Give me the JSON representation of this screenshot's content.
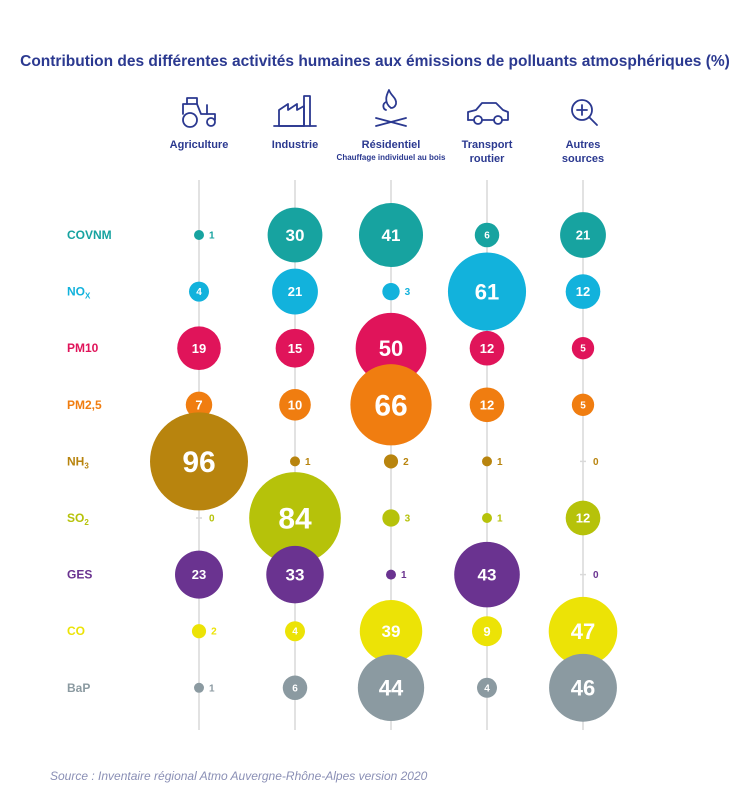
{
  "chart_data": {
    "type": "bubble-matrix",
    "title": "Contribution des différentes activités humaines aux émissions de polluants atmosphériques (%)",
    "columns": [
      {
        "key": "agriculture",
        "label": [
          "Agriculture"
        ],
        "icon": "tractor-icon"
      },
      {
        "key": "industrie",
        "label": [
          "Industrie"
        ],
        "icon": "factory-icon"
      },
      {
        "key": "residentiel",
        "label": [
          "Résidentiel"
        ],
        "sublabel": "Chauffage individuel au bois",
        "icon": "campfire-icon"
      },
      {
        "key": "transport",
        "label": [
          "Transport",
          "routier"
        ],
        "icon": "car-icon"
      },
      {
        "key": "autres",
        "label": [
          "Autres",
          "sources"
        ],
        "icon": "magnifier-plus-icon"
      }
    ],
    "rows": [
      {
        "name": "COVNM",
        "label_main": "COVNM",
        "label_sub": "",
        "color": "#17a3a0",
        "values": [
          1,
          30,
          41,
          6,
          21
        ]
      },
      {
        "name": "NOx",
        "label_main": "NO",
        "label_sub": "X",
        "color": "#12b2dc",
        "values": [
          4,
          21,
          3,
          61,
          12
        ]
      },
      {
        "name": "PM10",
        "label_main": "PM10",
        "label_sub": "",
        "color": "#e0145a",
        "values": [
          19,
          15,
          50,
          12,
          5
        ]
      },
      {
        "name": "PM2,5",
        "label_main": "PM2,5",
        "label_sub": "",
        "color": "#f07d10",
        "values": [
          7,
          10,
          66,
          12,
          5
        ]
      },
      {
        "name": "NH3",
        "label_main": "NH",
        "label_sub": "3",
        "color": "#b8840e",
        "values": [
          96,
          1,
          2,
          1,
          0
        ]
      },
      {
        "name": "SO2",
        "label_main": "SO",
        "label_sub": "2",
        "color": "#b6c20a",
        "values": [
          0,
          84,
          3,
          1,
          12
        ]
      },
      {
        "name": "GES",
        "label_main": "GES",
        "label_sub": "",
        "color": "#6a3390",
        "values": [
          23,
          33,
          1,
          43,
          0
        ]
      },
      {
        "name": "CO",
        "label_main": "CO",
        "label_sub": "",
        "color": "#ece306",
        "values": [
          2,
          4,
          39,
          9,
          47
        ]
      },
      {
        "name": "BaP",
        "label_main": "BaP",
        "label_sub": "",
        "color": "#8b9aa1",
        "values": [
          1,
          6,
          44,
          4,
          46
        ]
      }
    ],
    "source": "Source : Inventaire régional Atmo Auvergne-Rhône-Alpes version 2020"
  }
}
